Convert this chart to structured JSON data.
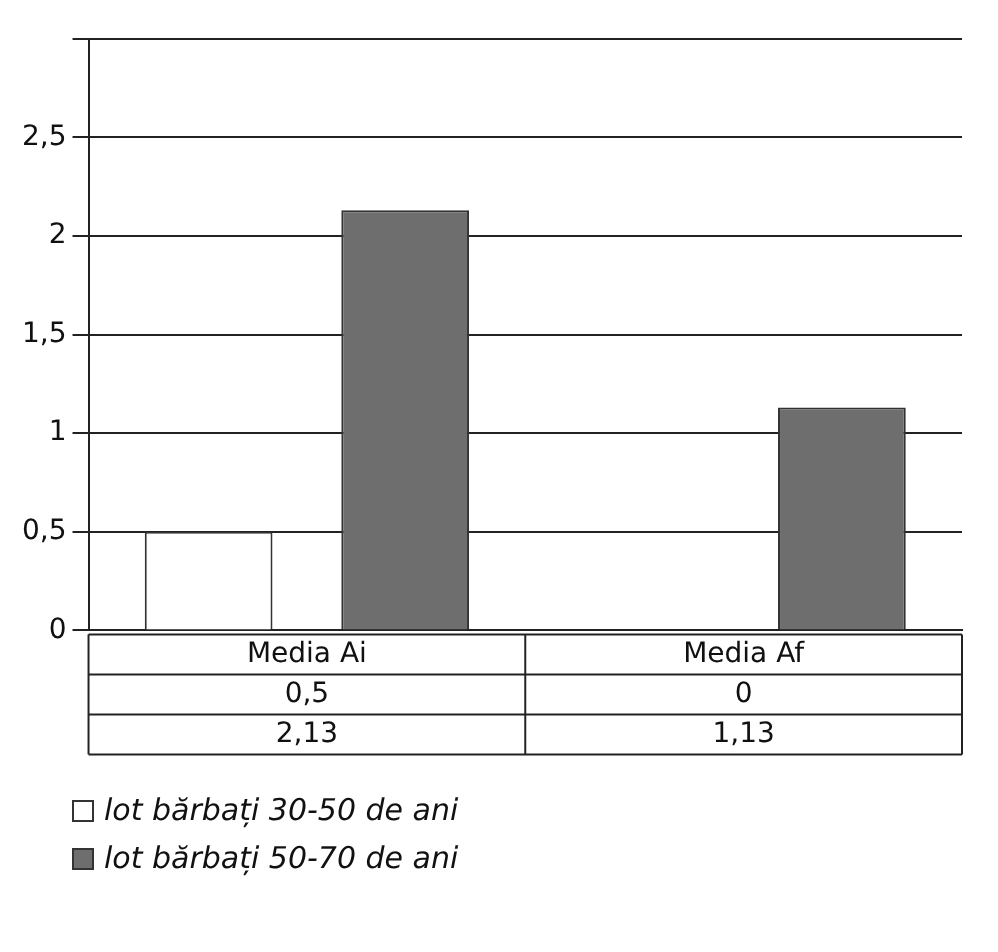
{
  "chart_data": {
    "type": "bar",
    "categories": [
      "Media Ai",
      "Media Af"
    ],
    "series": [
      {
        "name": "lot bărbați 30-50 de ani",
        "color": "#ffffff",
        "values": [
          0.5,
          0
        ],
        "value_labels": [
          "0,5",
          "0"
        ]
      },
      {
        "name": "lot bărbați 50-70 de ani",
        "color": "#6e6e6e",
        "values": [
          2.13,
          1.13
        ],
        "value_labels": [
          "2,13",
          "1,13"
        ]
      }
    ],
    "ylim": [
      0,
      3
    ],
    "yticks": [
      {
        "value": 0,
        "label": "0"
      },
      {
        "value": 0.5,
        "label": "0,5"
      },
      {
        "value": 1,
        "label": "1"
      },
      {
        "value": 1.5,
        "label": "1,5"
      },
      {
        "value": 2,
        "label": "2"
      },
      {
        "value": 2.5,
        "label": "2,5"
      },
      {
        "value": 3,
        "label": null
      }
    ],
    "grid": "y",
    "legend": "bottom left"
  }
}
